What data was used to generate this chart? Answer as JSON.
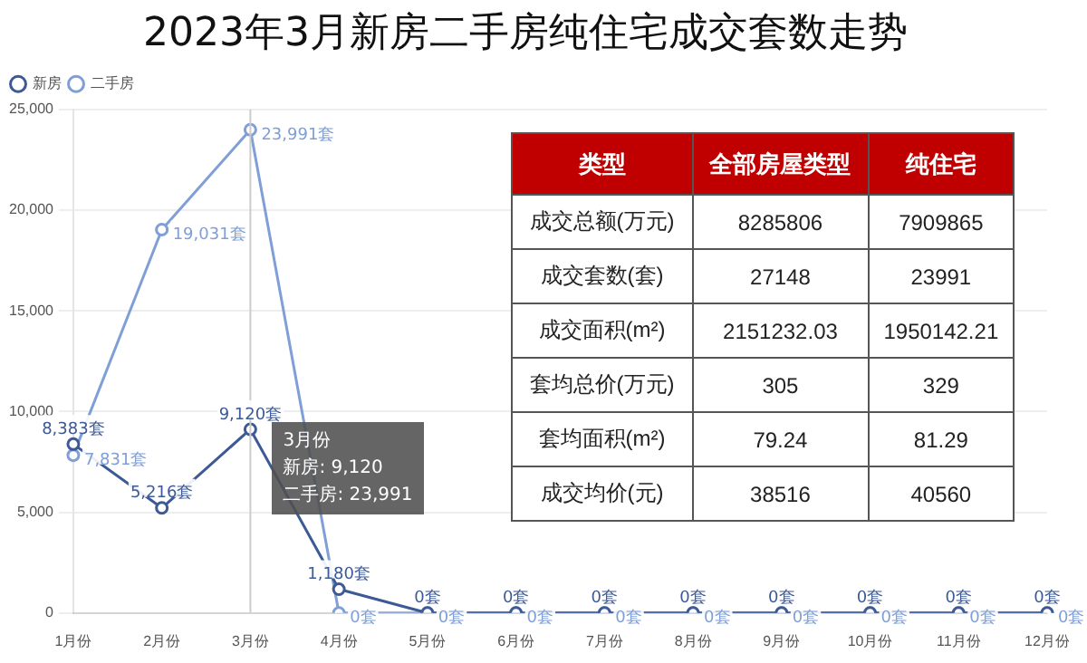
{
  "chart_data": [
    {
      "type": "line",
      "title": "2023年3月新房二手房纯住宅成交套数走势",
      "categories": [
        "1月份",
        "2月份",
        "3月份",
        "4月份",
        "5月份",
        "6月份",
        "7月份",
        "8月份",
        "9月份",
        "10月份",
        "11月份",
        "12月份"
      ],
      "series": [
        {
          "name": "新房",
          "color": "#3d5a96",
          "values": [
            8383,
            5216,
            9120,
            1180,
            0,
            0,
            0,
            0,
            0,
            0,
            0,
            0
          ],
          "value_labels": [
            "8,383套",
            "5,216套",
            "9,120套",
            "1,180套",
            "0套",
            "0套",
            "0套",
            "0套",
            "0套",
            "0套",
            "0套",
            "0套"
          ]
        },
        {
          "name": "二手房",
          "color": "#7f9fd6",
          "values": [
            7831,
            19031,
            23991,
            0,
            0,
            0,
            0,
            0,
            0,
            0,
            0,
            0
          ],
          "value_labels": [
            "7,831套",
            "19,031套",
            "23,991套",
            "0套",
            "0套",
            "0套",
            "0套",
            "0套",
            "0套",
            "0套",
            "0套",
            "0套"
          ]
        }
      ],
      "ylim": [
        0,
        25000
      ],
      "yticks": [
        {
          "value": 0,
          "label": "0"
        },
        {
          "value": 5000,
          "label": "5,000"
        },
        {
          "value": 10000,
          "label": "10,000"
        },
        {
          "value": 15000,
          "label": "15,000"
        },
        {
          "value": 20000,
          "label": "20,000"
        },
        {
          "value": 25000,
          "label": "25,000"
        }
      ],
      "grid": "y",
      "legend": "top",
      "marker": "circle",
      "line_style": "solid",
      "ref_lines": [
        {
          "axis": "x",
          "value": "3月份",
          "color": "#cccccc"
        }
      ],
      "annotations": [
        "3月份",
        "新房: 9,120",
        "二手房: 23,991"
      ]
    },
    {
      "type": "other",
      "color": "#c00000",
      "categories": [
        "类型",
        "全部房屋类型",
        "纯住宅"
      ],
      "y_categories": [
        "成交总额(万元)",
        "成交套数(套)",
        "成交面积(m²)",
        "套均总价(万元)",
        "套均面积(m²)",
        "成交均价(元)"
      ],
      "cell_labels": [
        [
          "8285806",
          "7909865"
        ],
        [
          "27148",
          "23991"
        ],
        [
          "2151232.03",
          "1950142.21"
        ],
        [
          "305",
          "329"
        ],
        [
          "79.24",
          "81.29"
        ],
        [
          "38516",
          "40560"
        ]
      ]
    }
  ]
}
